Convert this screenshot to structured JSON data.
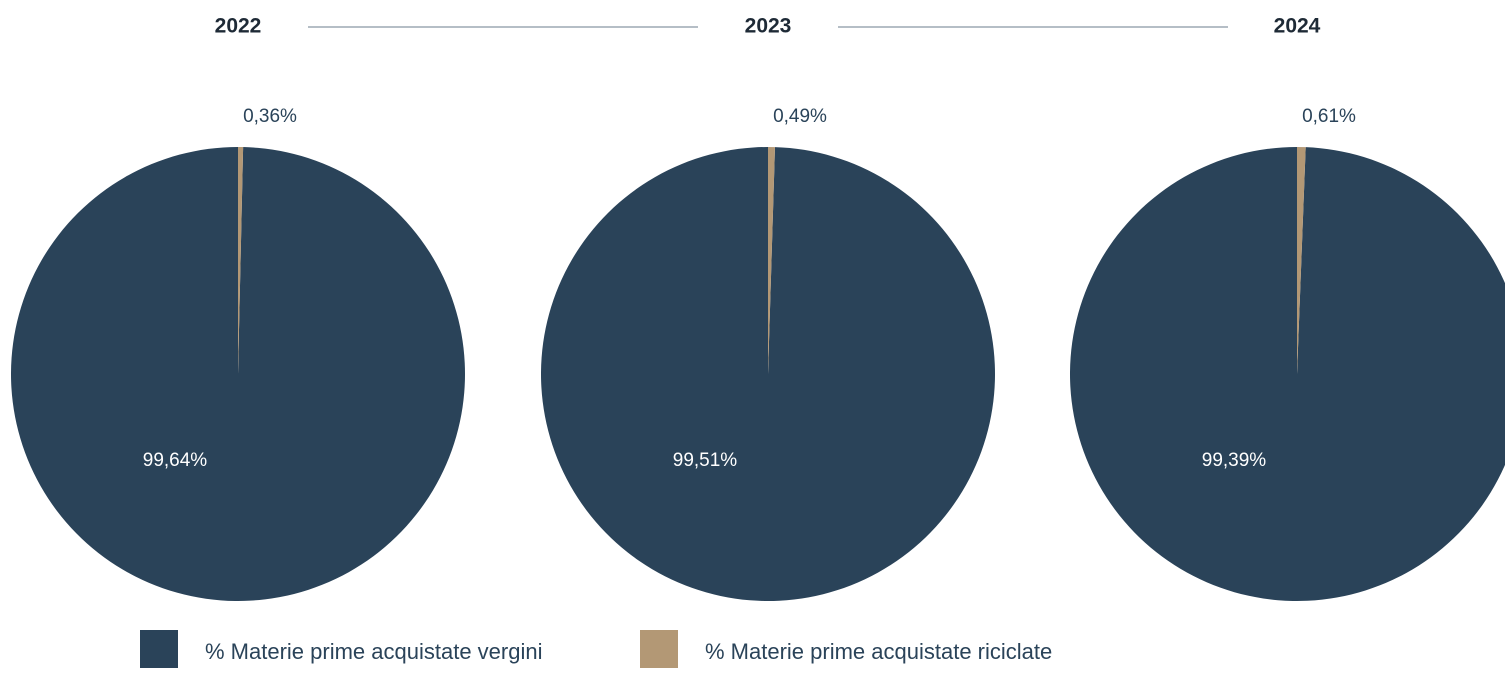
{
  "chart_data": [
    {
      "type": "pie",
      "title": "2022",
      "categories": [
        "% Materie prime acquistate vergini",
        "% Materie prime acquistate riciclate"
      ],
      "values": [
        99.64,
        0.36
      ],
      "value_labels": [
        "99,64%",
        "0,36%"
      ],
      "colors": [
        "#2a4359",
        "#b39875"
      ]
    },
    {
      "type": "pie",
      "title": "2023",
      "categories": [
        "% Materie prime acquistate vergini",
        "% Materie prime acquistate riciclate"
      ],
      "values": [
        99.51,
        0.49
      ],
      "value_labels": [
        "99,51%",
        "0,49%"
      ],
      "colors": [
        "#2a4359",
        "#b39875"
      ]
    },
    {
      "type": "pie",
      "title": "2024",
      "categories": [
        "% Materie prime acquistate vergini",
        "% Materie prime acquistate riciclate"
      ],
      "values": [
        99.39,
        0.61
      ],
      "value_labels": [
        "99,39%",
        "0,61%"
      ],
      "colors": [
        "#2a4359",
        "#b39875"
      ]
    }
  ]
}
